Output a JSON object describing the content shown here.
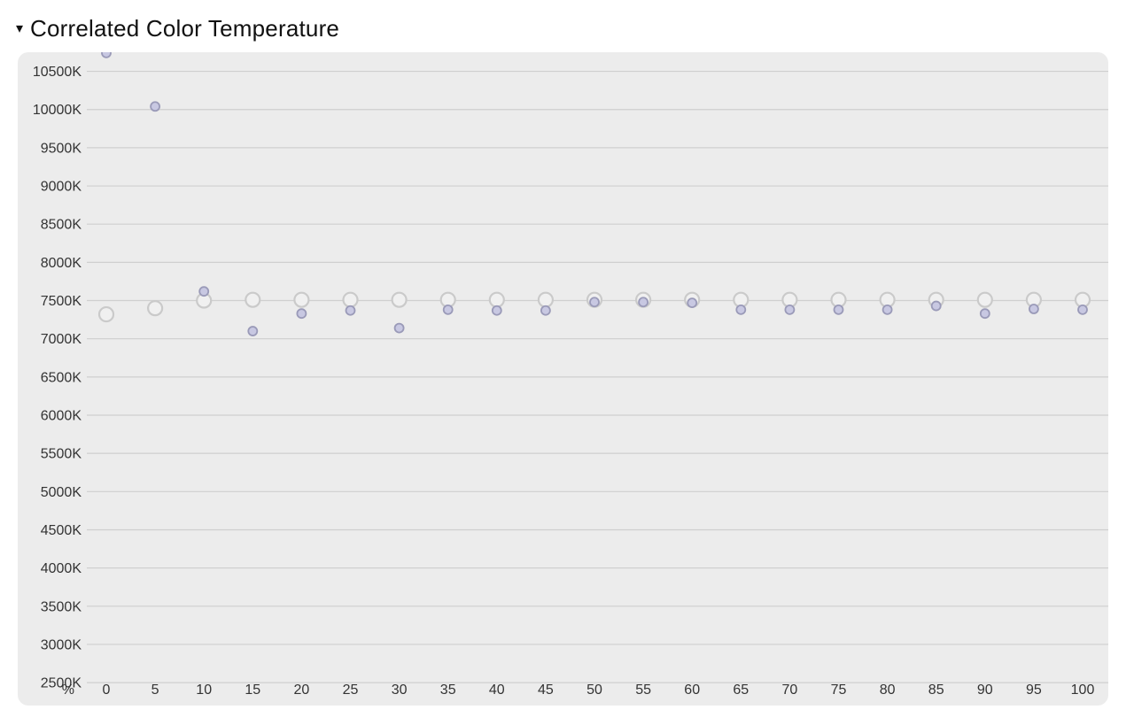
{
  "section": {
    "toggle_icon": "triangle-down-icon",
    "toggle_glyph": "▾",
    "title": "Correlated Color Temperature"
  },
  "colors": {
    "card_background": "#ececec",
    "gridline": "#cfcfcf",
    "text": "#333333",
    "target_marker_stroke": "#cacaca",
    "target_marker_fill": "#f0f0f0",
    "measured_marker_stroke": "#9a9ab8",
    "measured_marker_fill": "#c8c8e2"
  },
  "chart_data": {
    "type": "scatter",
    "xlabel": "%",
    "ylabel": "",
    "y_unit_suffix": "K",
    "grid": true,
    "legend": "none",
    "ylim": [
      2200,
      10750
    ],
    "x_ticks": [
      0,
      5,
      10,
      15,
      20,
      25,
      30,
      35,
      40,
      45,
      50,
      55,
      60,
      65,
      70,
      75,
      80,
      85,
      90,
      95,
      100
    ],
    "y_ticks": [
      2500,
      3000,
      3500,
      4000,
      4500,
      5000,
      5500,
      6000,
      6500,
      7000,
      7500,
      8000,
      8500,
      9000,
      9500,
      10000,
      10500
    ],
    "y_tick_labels": [
      "2500K",
      "3000K",
      "3500K",
      "4000K",
      "4500K",
      "5000K",
      "5500K",
      "6000K",
      "6500K",
      "7000K",
      "7500K",
      "8000K",
      "8500K",
      "9000K",
      "9500K",
      "10000K",
      "10500K"
    ],
    "series": [
      {
        "marker": "hollow-large",
        "x": [
          0,
          5,
          10,
          15,
          20,
          25,
          30,
          35,
          40,
          45,
          50,
          55,
          60,
          65,
          70,
          75,
          80,
          85,
          90,
          95,
          100
        ],
        "values": [
          7320,
          7400,
          7500,
          7510,
          7510,
          7510,
          7510,
          7510,
          7510,
          7510,
          7510,
          7510,
          7510,
          7510,
          7510,
          7510,
          7510,
          7510,
          7510,
          7510,
          7510
        ]
      },
      {
        "marker": "filled-small",
        "x": [
          0,
          5,
          10,
          15,
          20,
          25,
          30,
          35,
          40,
          45,
          50,
          55,
          60,
          65,
          70,
          75,
          80,
          85,
          90,
          95,
          100
        ],
        "values": [
          10740,
          10040,
          7620,
          7100,
          7330,
          7370,
          7140,
          7380,
          7370,
          7370,
          7480,
          7480,
          7470,
          7380,
          7380,
          7380,
          7380,
          7430,
          7330,
          7390,
          7380
        ]
      }
    ]
  }
}
